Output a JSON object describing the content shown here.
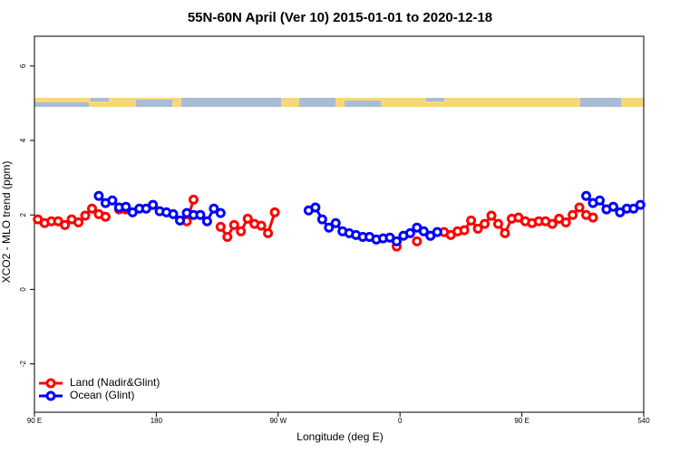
{
  "chart_data": {
    "type": "line",
    "title": "55N-60N April (Ver 10)   2015-01-01 to 2020-12-18",
    "xlabel": "Longitude (deg E)",
    "ylabel": "XCO2 - MLO trend (ppm)",
    "x": [
      92.5,
      97.5,
      102.5,
      107.5,
      112.5,
      117.5,
      122.5,
      127.5,
      132.5,
      137.5,
      142.5,
      147.5,
      152.5,
      157.5,
      162.5,
      167.5,
      172.5,
      177.5,
      182.5,
      187.5,
      192.5,
      197.5,
      202.5,
      207.5,
      212.5,
      217.5,
      222.5,
      227.5,
      232.5,
      237.5,
      242.5,
      247.5,
      252.5,
      257.5,
      262.5,
      267.5,
      272.5,
      277.5,
      282.5,
      287.5,
      292.5,
      297.5,
      302.5,
      307.5,
      312.5,
      317.5,
      322.5,
      327.5,
      332.5,
      337.5,
      342.5,
      347.5,
      352.5,
      357.5,
      362.5,
      367.5,
      372.5,
      377.5,
      382.5,
      387.5,
      392.5,
      397.5,
      402.5,
      407.5,
      412.5,
      417.5,
      422.5,
      427.5,
      432.5,
      437.5,
      442.5,
      447.5,
      452.5,
      457.5,
      462.5,
      467.5,
      472.5,
      477.5,
      482.5,
      487.5,
      492.5,
      497.5,
      502.5,
      507.5,
      512.5,
      517.5,
      522.5,
      527.5,
      532.5,
      537.5
    ],
    "series": [
      {
        "name": "Land (Nadir&Glint)",
        "color": "#ff0000",
        "values": [
          1.88,
          1.78,
          1.83,
          1.83,
          1.73,
          1.88,
          1.8,
          1.98,
          2.17,
          2.02,
          1.95,
          null,
          2.15,
          2.15,
          null,
          null,
          null,
          null,
          null,
          null,
          null,
          null,
          1.83,
          2.41,
          null,
          null,
          null,
          1.68,
          1.41,
          1.73,
          1.56,
          1.9,
          1.76,
          1.71,
          1.51,
          2.07,
          null,
          null,
          null,
          null,
          null,
          null,
          null,
          null,
          null,
          null,
          null,
          null,
          null,
          null,
          null,
          null,
          null,
          1.15,
          null,
          null,
          1.29,
          null,
          1.44,
          null,
          1.54,
          1.46,
          1.56,
          1.59,
          1.85,
          1.63,
          1.76,
          1.98,
          1.76,
          1.51,
          1.9,
          1.93,
          1.83,
          1.78,
          1.83,
          1.83,
          1.76,
          1.9,
          1.8,
          2.0,
          2.2,
          2.0,
          1.93,
          null,
          2.15,
          null,
          null,
          null,
          null,
          null
        ]
      },
      {
        "name": "Ocean (Glint)",
        "color": "#0000ff",
        "values": [
          null,
          null,
          null,
          null,
          null,
          null,
          null,
          null,
          null,
          2.51,
          2.32,
          2.39,
          2.2,
          2.22,
          2.07,
          2.17,
          2.17,
          2.27,
          2.1,
          2.07,
          2.02,
          1.85,
          2.05,
          2.0,
          2.0,
          1.83,
          2.17,
          2.05,
          null,
          null,
          null,
          null,
          null,
          null,
          null,
          null,
          null,
          null,
          null,
          null,
          2.12,
          2.2,
          1.88,
          1.66,
          1.78,
          1.56,
          1.51,
          1.46,
          1.41,
          1.41,
          1.34,
          1.37,
          1.39,
          1.29,
          1.44,
          1.51,
          1.66,
          1.56,
          1.44,
          1.54,
          null,
          null,
          null,
          null,
          null,
          null,
          null,
          null,
          null,
          null,
          null,
          null,
          null,
          null,
          null,
          null,
          null,
          null,
          null,
          null,
          null,
          2.51,
          2.32,
          2.39,
          2.15,
          2.22,
          2.07,
          2.17,
          2.17,
          2.27
        ]
      }
    ],
    "xlim": [
      90,
      540
    ],
    "xticks": [
      {
        "value": 90,
        "label": "90 E"
      },
      180,
      {
        "value": 270,
        "label": "90 W"
      },
      {
        "value": 360,
        "label": "0"
      },
      {
        "value": 450,
        "label": "90 E"
      },
      540
    ],
    "ylim": [
      -3.3,
      6.8
    ],
    "yticks": [
      -2,
      0,
      2,
      4,
      6
    ],
    "grid": false,
    "legend": "bottom-left"
  }
}
